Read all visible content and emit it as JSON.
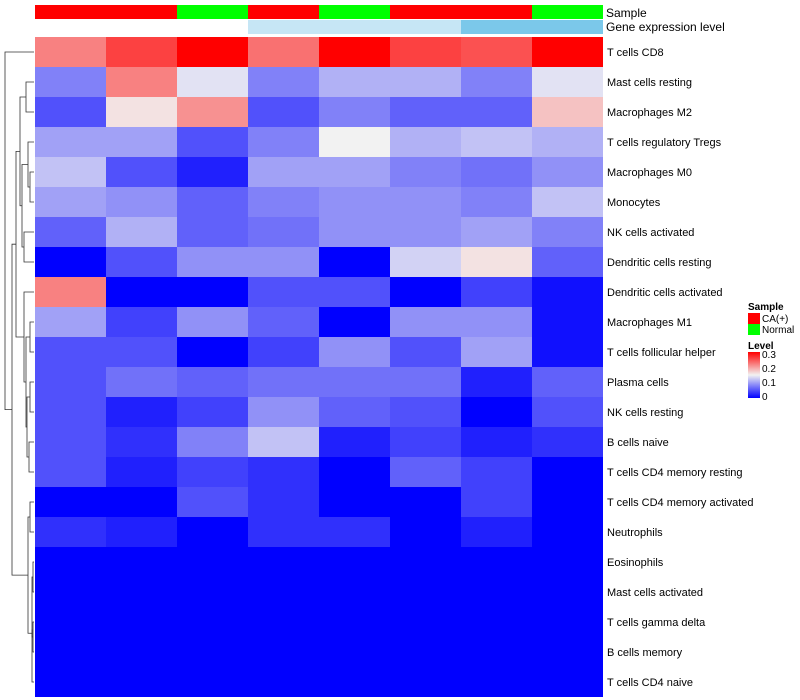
{
  "chart_data": {
    "type": "heatmap",
    "annotations": [
      {
        "name": "Sample",
        "values": [
          "CA(+)",
          "CA(+)",
          "Normal",
          "CA(+)",
          "Normal",
          "CA(+)",
          "CA(+)",
          "Normal"
        ]
      },
      {
        "name": "Gene expression level",
        "values": [
          "low",
          "low",
          "low",
          "high",
          "high",
          "high",
          "higher",
          "higher"
        ]
      }
    ],
    "anno_colors": {
      "Sample": {
        "CA(+)": "#FF0000",
        "Normal": "#00FF00"
      },
      "Gene expression level": {
        "low": "#FFFFFF",
        "high": "#C6E6F5",
        "higher": "#7BC8EA"
      }
    },
    "rows": [
      "T cells CD8",
      "Mast cells resting",
      "Macrophages M2",
      "T cells regulatory  Tregs",
      "Macrophages M0",
      "Monocytes",
      "NK cells activated",
      "Dendritic cells resting",
      "Dendritic cells activated",
      "Macrophages M1",
      "T cells follicular helper",
      "Plasma cells",
      "NK cells resting",
      "B cells naive",
      "T cells CD4 memory resting",
      "T cells CD4 memory activated",
      "Neutrophils",
      "Eosinophils",
      "Mast cells activated",
      "T cells gamma delta",
      "B cells memory",
      "T cells CD4 naive"
    ],
    "values": [
      [
        0.22,
        0.26,
        0.3,
        0.23,
        0.3,
        0.26,
        0.25,
        0.3
      ],
      [
        0.08,
        0.22,
        0.14,
        0.08,
        0.11,
        0.11,
        0.08,
        0.14
      ],
      [
        0.05,
        0.16,
        0.21,
        0.05,
        0.08,
        0.06,
        0.06,
        0.18
      ],
      [
        0.1,
        0.1,
        0.05,
        0.08,
        0.15,
        0.11,
        0.12,
        0.11
      ],
      [
        0.12,
        0.05,
        0.02,
        0.1,
        0.1,
        0.08,
        0.07,
        0.09
      ],
      [
        0.1,
        0.09,
        0.06,
        0.08,
        0.09,
        0.09,
        0.08,
        0.12
      ],
      [
        0.06,
        0.11,
        0.06,
        0.07,
        0.09,
        0.09,
        0.1,
        0.08
      ],
      [
        0.0,
        0.05,
        0.09,
        0.09,
        0.0,
        0.13,
        0.16,
        0.06
      ],
      [
        0.22,
        0.0,
        0.0,
        0.05,
        0.05,
        0.0,
        0.04,
        0.01
      ],
      [
        0.1,
        0.04,
        0.09,
        0.06,
        0.0,
        0.09,
        0.09,
        0.01
      ],
      [
        0.05,
        0.05,
        0.0,
        0.04,
        0.09,
        0.05,
        0.1,
        0.01
      ],
      [
        0.05,
        0.07,
        0.06,
        0.07,
        0.07,
        0.07,
        0.02,
        0.06
      ],
      [
        0.05,
        0.02,
        0.04,
        0.09,
        0.06,
        0.05,
        0.0,
        0.05
      ],
      [
        0.05,
        0.03,
        0.08,
        0.12,
        0.02,
        0.04,
        0.02,
        0.03
      ],
      [
        0.05,
        0.02,
        0.04,
        0.03,
        0.0,
        0.06,
        0.04,
        0.0
      ],
      [
        0.0,
        0.0,
        0.05,
        0.03,
        0.0,
        0.0,
        0.04,
        0.0
      ],
      [
        0.03,
        0.02,
        0.0,
        0.03,
        0.03,
        0.0,
        0.02,
        0.0
      ],
      [
        0.0,
        0.0,
        0.0,
        0.0,
        0.0,
        0.0,
        0.0,
        0.0
      ],
      [
        0.0,
        0.0,
        0.0,
        0.0,
        0.0,
        0.0,
        0.0,
        0.0
      ],
      [
        0.0,
        0.0,
        0.0,
        0.0,
        0.0,
        0.0,
        0.0,
        0.0
      ],
      [
        0.0,
        0.0,
        0.0,
        0.0,
        0.0,
        0.0,
        0.0,
        0.0
      ],
      [
        0.0,
        0.0,
        0.0,
        0.0,
        0.0,
        0.0,
        0.0,
        0.0
      ]
    ],
    "color_scale": {
      "min": 0,
      "mid": 0.15,
      "max": 0.3,
      "low": "#0000FF",
      "mid_color": "#F2F2F2",
      "high": "#FF0000"
    },
    "legend": {
      "sample_title": "Sample",
      "sample_items": [
        "CA(+)",
        "Normal"
      ],
      "level_title": "Level",
      "level_ticks": [
        "0.3",
        "0.2",
        "0.1",
        "0"
      ],
      "placement": "right"
    },
    "dendrogram": "rows"
  }
}
